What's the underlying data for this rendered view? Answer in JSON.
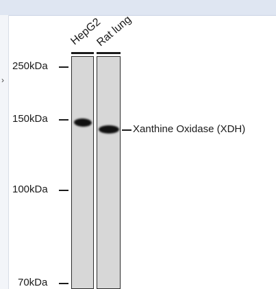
{
  "lanes": [
    {
      "label": "HepG2"
    },
    {
      "label": "Rat lung"
    }
  ],
  "markers": [
    {
      "label": "250kDa"
    },
    {
      "label": "150kDa"
    },
    {
      "label": "100kDa"
    },
    {
      "label": "70kDa"
    }
  ],
  "target": {
    "label": "Xanthine Oxidase (XDH)"
  },
  "ui": {
    "side_glyph": "›"
  },
  "colors": {
    "topbar": "#dfe6f2",
    "lane_bg": "#d7d7d7",
    "band": "#111111"
  }
}
